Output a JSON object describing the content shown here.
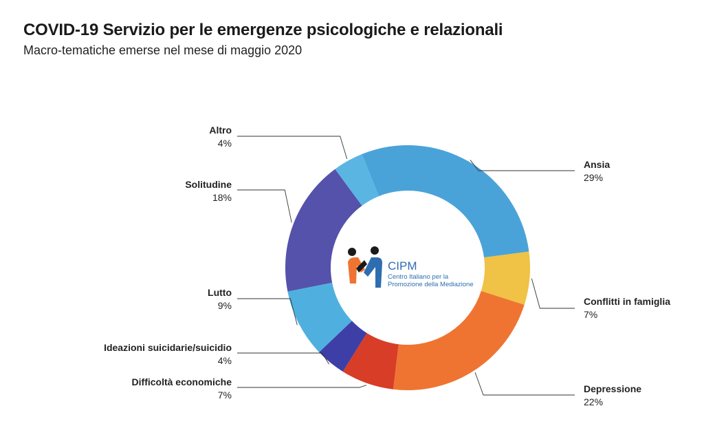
{
  "header": {
    "title": "COVID-19 Servizio per le emergenze psicologiche e relazionali",
    "subtitle": "Macro-tematiche emerse nel mese di maggio 2020"
  },
  "logo": {
    "name": "CIPM",
    "line1": "Centro Italiano per la",
    "line2": "Promozione della Mediazione"
  },
  "chart_data": {
    "type": "pie",
    "donut": true,
    "title": "COVID-19 Servizio per le emergenze psicologiche e relazionali",
    "subtitle": "Macro-tematiche emerse nel mese di maggio 2020",
    "categories": [
      "Ansia",
      "Conflitti in famiglia",
      "Depressione",
      "Difficoltà economiche",
      "Ideazioni suicidarie/suicidio",
      "Lutto",
      "Solitudine",
      "Altro"
    ],
    "values": [
      29,
      7,
      22,
      7,
      4,
      9,
      18,
      4
    ],
    "value_labels": [
      "29%",
      "7%",
      "22%",
      "7%",
      "4%",
      "9%",
      "18%",
      "4%"
    ],
    "colors": [
      "#4aa3d8",
      "#f0c245",
      "#ef7432",
      "#d73d27",
      "#3e3fa6",
      "#4fb0df",
      "#5452ab",
      "#5bb5e2"
    ],
    "legend": "outside-callouts"
  }
}
